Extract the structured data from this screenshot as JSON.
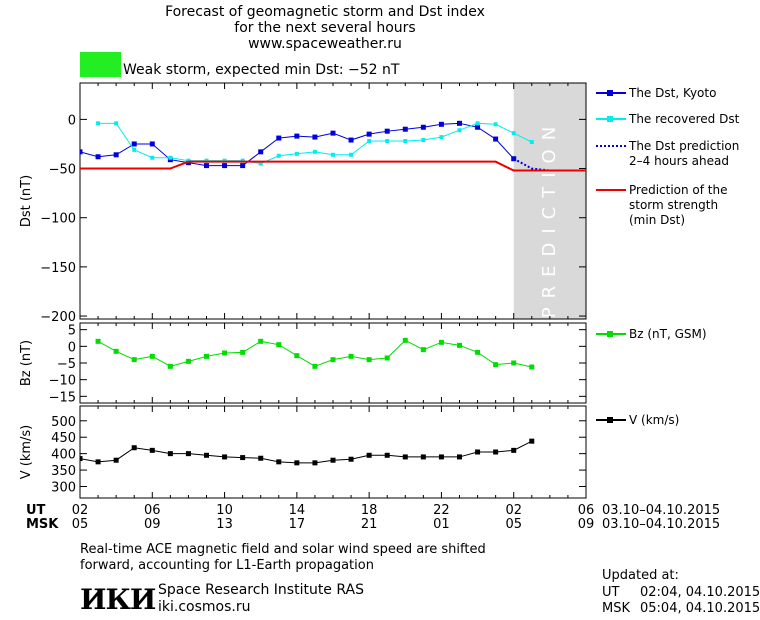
{
  "header": {
    "title_line1": "Forecast of geomagnetic storm and Dst index",
    "title_line2": "for the next several hours",
    "url": "www.spaceweather.ru",
    "storm_status": "Weak storm, expected min Dst: −52 nT",
    "storm_color": "#22ee22"
  },
  "colors": {
    "dst_kyoto": "#0000dd",
    "dst_recovered": "#00eeee",
    "storm_strength": "#ee0000",
    "bz": "#00dd00",
    "v": "#000000",
    "prediction_band": "#d9d9d9"
  },
  "chart_data": [
    {
      "type": "line",
      "id": "dst",
      "ylabel": "Dst (nT)",
      "ylim": [
        -203,
        37
      ],
      "yticks": [
        0,
        -50,
        -100,
        -150,
        -200
      ],
      "ytick_labels": [
        "0",
        "−50",
        "−100",
        "−150",
        "−200"
      ],
      "xlim": [
        0,
        28
      ],
      "prediction_band_x": [
        24,
        28
      ],
      "prediction_label": "PREDICTION",
      "series": [
        {
          "name": "The Dst, Kyoto",
          "key": "kyoto",
          "x": [
            0,
            1,
            2,
            3,
            4,
            5,
            6,
            7,
            8,
            9,
            10,
            11,
            12,
            13,
            14,
            15,
            16,
            17,
            18,
            19,
            20,
            21,
            22,
            23,
            24
          ],
          "y": [
            -33,
            -38,
            -36,
            -25,
            -25,
            -41,
            -44,
            -47,
            -47,
            -47,
            -33,
            -19,
            -17,
            -18,
            -14,
            -21,
            -15,
            -12,
            -10,
            -8,
            -5,
            -4,
            -8,
            -20,
            -40
          ]
        },
        {
          "name": "The recovered Dst",
          "key": "recovered",
          "x": [
            1,
            2,
            3,
            4,
            5,
            6,
            7,
            8,
            9,
            10,
            11,
            12,
            13,
            14,
            15,
            16,
            17,
            18,
            19,
            20,
            21,
            22,
            23,
            24,
            25
          ],
          "y": [
            -4,
            -4,
            -31,
            -39,
            -39,
            -42,
            -42,
            -42,
            -42,
            -45,
            -37,
            -35,
            -33,
            -36,
            -36,
            -22,
            -22,
            -22,
            -21,
            -18,
            -11,
            -4,
            -5,
            -14,
            -23
          ]
        },
        {
          "name": "The Dst prediction\n2–4 hours ahead",
          "key": "prediction",
          "x": [
            24,
            25,
            26,
            27
          ],
          "y": [
            -40,
            -50,
            -52,
            -52
          ]
        },
        {
          "name": "Prediction of the\nstorm strength\n(min Dst)",
          "key": "strength",
          "x": [
            -1,
            5,
            6,
            23,
            24,
            28
          ],
          "y": [
            -50,
            -50,
            -43,
            -43,
            -52,
            -52
          ]
        }
      ]
    },
    {
      "type": "line",
      "id": "bz",
      "ylabel": "Bz (nT)",
      "ylim": [
        -17,
        7
      ],
      "yticks": [
        5,
        0,
        -5,
        -10,
        -15
      ],
      "ytick_labels": [
        "5",
        "0",
        "−5",
        "−10",
        "−15"
      ],
      "xlim": [
        0,
        28
      ],
      "series": [
        {
          "name": "Bz (nT, GSM)",
          "x": [
            1,
            2,
            3,
            4,
            5,
            6,
            7,
            8,
            9,
            10,
            11,
            12,
            13,
            14,
            15,
            16,
            17,
            18,
            19,
            20,
            21,
            22,
            23,
            24,
            25
          ],
          "y": [
            1.5,
            -1.5,
            -4,
            -3,
            -6,
            -4.5,
            -3,
            -2,
            -1.8,
            1.5,
            0.5,
            -2.8,
            -6,
            -4,
            -3,
            -4,
            -3.5,
            1.8,
            -1,
            1.2,
            0.3,
            -1.8,
            -5.5,
            -5,
            -6.2
          ]
        }
      ]
    },
    {
      "type": "line",
      "id": "v",
      "ylabel": "V (km/s)",
      "ylim": [
        265,
        545
      ],
      "yticks": [
        500,
        450,
        400,
        350,
        300
      ],
      "ytick_labels": [
        "500",
        "450",
        "400",
        "350",
        "300"
      ],
      "xlim": [
        0,
        28
      ],
      "series": [
        {
          "name": "V (km/s)",
          "x": [
            0,
            1,
            2,
            3,
            4,
            5,
            6,
            7,
            8,
            9,
            10,
            11,
            12,
            13,
            14,
            15,
            16,
            17,
            18,
            19,
            20,
            21,
            22,
            23,
            24,
            25
          ],
          "y": [
            385,
            375,
            380,
            418,
            410,
            400,
            400,
            395,
            390,
            388,
            386,
            375,
            372,
            372,
            380,
            383,
            395,
            395,
            390,
            390,
            390,
            390,
            405,
            405,
            410,
            438
          ]
        }
      ]
    }
  ],
  "time_axis": {
    "ut_label": "UT",
    "msk_label": "MSK",
    "ut_ticks": [
      "02",
      "06",
      "10",
      "14",
      "18",
      "22",
      "02",
      "06"
    ],
    "msk_ticks": [
      "05",
      "09",
      "13",
      "17",
      "21",
      "01",
      "05",
      "09"
    ],
    "ut_date_range": "03.10–04.10.2015",
    "msk_date_range": "03.10–04.10.2015"
  },
  "footer": {
    "note_line1": "Real-time ACE magnetic field and solar wind speed are shifted",
    "note_line2": "forward, accounting for L1-Earth propagation",
    "logo_text": "ИКИ",
    "institute": "Space Research Institute RAS",
    "institute_url": "iki.cosmos.ru",
    "updated_label": "Updated at:",
    "updated_ut_label": "UT",
    "updated_ut": "02:04, 04.10.2015",
    "updated_msk_label": "MSK",
    "updated_msk": "05:04, 04.10.2015"
  }
}
